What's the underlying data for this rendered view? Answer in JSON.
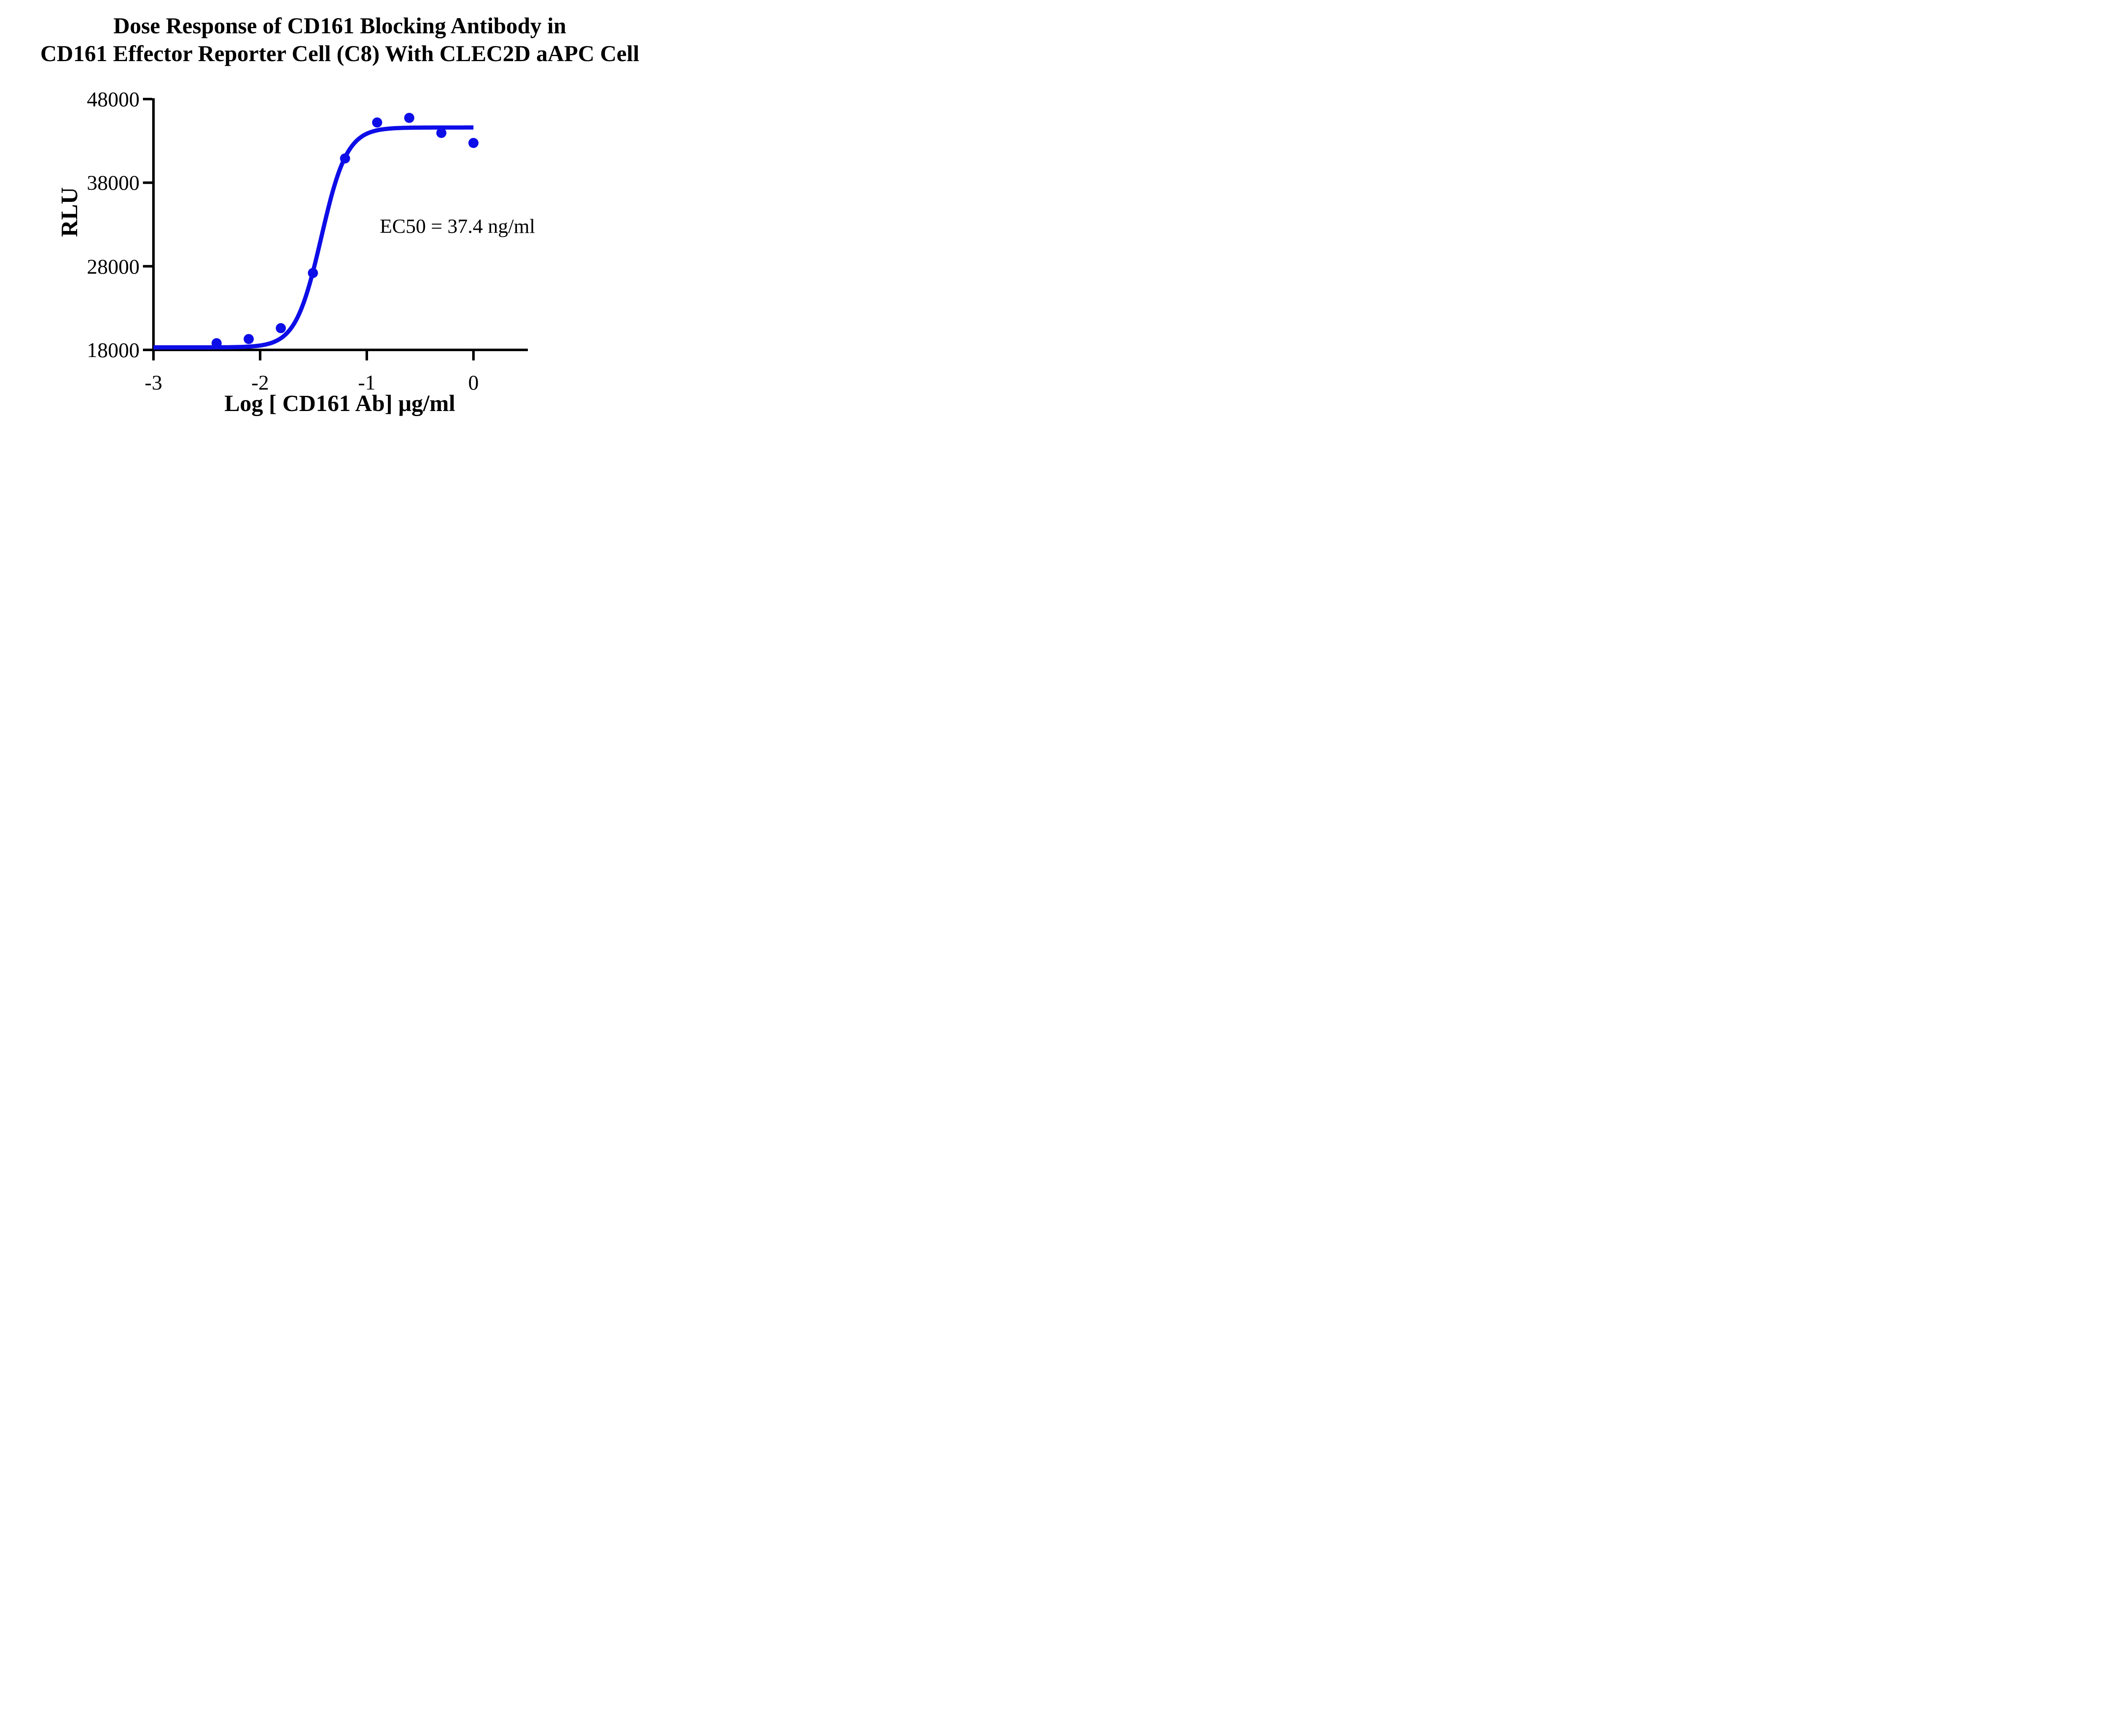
{
  "chart_data": {
    "type": "scatter",
    "title_line1": "Dose Response of CD161 Blocking Antibody in",
    "title_line2": "CD161 Effector Reporter Cell (C8) With CLEC2D aAPC Cell",
    "xlabel": "Log [ CD161 Ab] μg/ml",
    "ylabel": "RLU",
    "annotation": "EC50 = 37.4 ng/ml",
    "accent_color": "#0D0DE8",
    "axis_color": "#000000",
    "xlim": [
      -3,
      0.51
    ],
    "ylim": [
      18000,
      48000
    ],
    "grid": false,
    "legend": "none",
    "x_ticks": [
      -3,
      -2,
      -1,
      0
    ],
    "x_tick_labels": [
      "-3",
      "-2",
      "-1",
      "0"
    ],
    "y_ticks": [
      18000,
      28000,
      38000,
      48000
    ],
    "y_tick_labels": [
      "18000",
      "28000",
      "38000",
      "48000"
    ],
    "points": [
      {
        "log_x": -2.408,
        "rlu": 18800
      },
      {
        "log_x": -2.107,
        "rlu": 19300
      },
      {
        "log_x": -1.806,
        "rlu": 20600
      },
      {
        "log_x": -1.505,
        "rlu": 27200
      },
      {
        "log_x": -1.204,
        "rlu": 40900
      },
      {
        "log_x": -0.903,
        "rlu": 45200
      },
      {
        "log_x": -0.602,
        "rlu": 45750
      },
      {
        "log_x": -0.301,
        "rlu": 43950
      },
      {
        "log_x": 0.0,
        "rlu": 42750
      }
    ],
    "fit_curve": {
      "model": "4PL-sigmoid",
      "bottom": 18300,
      "top": 44600,
      "log_ec50": -1.427,
      "hill_slope": 3.6,
      "x_start": -3,
      "x_end": 0
    },
    "annotation_anchor": {
      "log_x": -0.15,
      "rlu": 32900
    }
  }
}
